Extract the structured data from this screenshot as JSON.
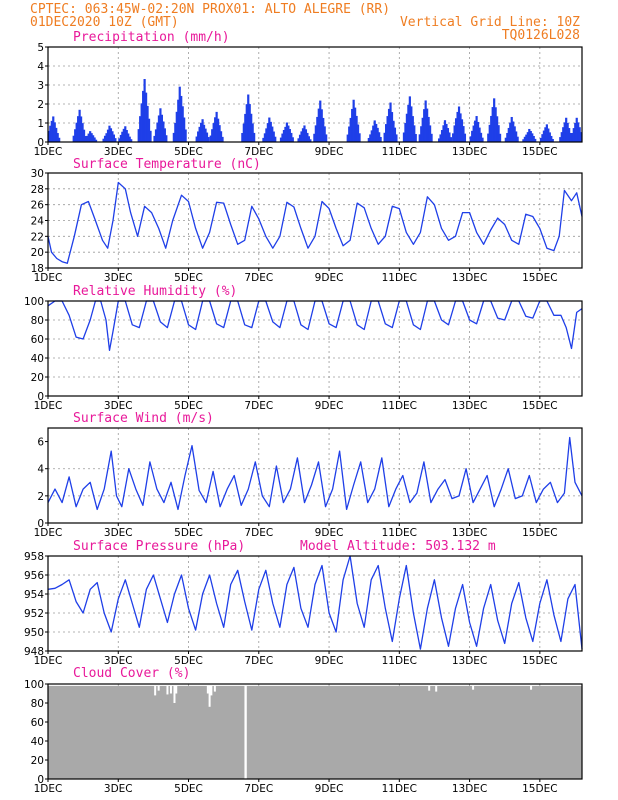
{
  "header": {
    "line1_left": "CPTEC:  063:45W-02:20N  PROX01: ALTO ALEGRE (RR)",
    "line2_left": "01DEC2020 10Z (GMT)",
    "line2_right": "Vertical Grid Line: 10Z",
    "line3_right": "TQ0126L028"
  },
  "colors": {
    "header": "#ef7d22",
    "panel_title": "#e8199a",
    "series": "#1f3fe8",
    "cloud": "#a9a9a9"
  },
  "x_axis": {
    "tick_labels": [
      "1DEC",
      "3DEC",
      "5DEC",
      "7DEC",
      "9DEC",
      "11DEC",
      "13DEC",
      "15DEC"
    ],
    "tick_days": [
      1,
      3,
      5,
      7,
      9,
      11,
      13,
      15
    ],
    "range_days": [
      1,
      16.2
    ]
  },
  "chart_data": [
    {
      "type": "bar",
      "title": "Precipitation (mm/h)",
      "ylim": [
        0,
        5
      ],
      "y_ticks": [
        "0",
        "1",
        "2",
        "3",
        "4",
        "5"
      ],
      "grid": true,
      "bursts": [
        {
          "day": 1.15,
          "peak": 1.5
        },
        {
          "day": 1.9,
          "peak": 1.7
        },
        {
          "day": 2.2,
          "peak": 0.6
        },
        {
          "day": 2.75,
          "peak": 1.1
        },
        {
          "day": 3.2,
          "peak": 1.0
        },
        {
          "day": 3.75,
          "peak": 3.4
        },
        {
          "day": 4.2,
          "peak": 1.8
        },
        {
          "day": 4.75,
          "peak": 3.4
        },
        {
          "day": 5.4,
          "peak": 1.6
        },
        {
          "day": 5.8,
          "peak": 1.7
        },
        {
          "day": 6.7,
          "peak": 2.5
        },
        {
          "day": 7.3,
          "peak": 1.4
        },
        {
          "day": 7.8,
          "peak": 1.4
        },
        {
          "day": 8.3,
          "peak": 1.0
        },
        {
          "day": 8.75,
          "peak": 2.2
        },
        {
          "day": 9.7,
          "peak": 2.3
        },
        {
          "day": 10.3,
          "peak": 1.4
        },
        {
          "day": 10.75,
          "peak": 2.6
        },
        {
          "day": 11.3,
          "peak": 2.5
        },
        {
          "day": 11.75,
          "peak": 2.2
        },
        {
          "day": 12.3,
          "peak": 1.3
        },
        {
          "day": 12.7,
          "peak": 2.6
        },
        {
          "day": 13.2,
          "peak": 1.5
        },
        {
          "day": 13.7,
          "peak": 2.3
        },
        {
          "day": 14.2,
          "peak": 1.4
        },
        {
          "day": 14.7,
          "peak": 0.9
        },
        {
          "day": 15.2,
          "peak": 1.1
        },
        {
          "day": 15.75,
          "peak": 1.3
        },
        {
          "day": 16.05,
          "peak": 1.3
        }
      ]
    },
    {
      "type": "line",
      "title": "Surface Temperature (nC)",
      "ylim": [
        18,
        30
      ],
      "y_ticks": [
        "18",
        "20",
        "22",
        "24",
        "26",
        "28",
        "30"
      ],
      "grid": true,
      "x": [
        1.0,
        1.1,
        1.25,
        1.4,
        1.55,
        1.75,
        1.95,
        2.15,
        2.35,
        2.55,
        2.7,
        2.85,
        3.0,
        3.2,
        3.35,
        3.55,
        3.75,
        3.95,
        4.15,
        4.35,
        4.55,
        4.8,
        5.0,
        5.2,
        5.4,
        5.6,
        5.8,
        6.0,
        6.2,
        6.4,
        6.6,
        6.8,
        7.0,
        7.2,
        7.4,
        7.6,
        7.8,
        8.0,
        8.2,
        8.4,
        8.6,
        8.8,
        9.0,
        9.2,
        9.4,
        9.6,
        9.8,
        10.0,
        10.2,
        10.4,
        10.6,
        10.8,
        11.0,
        11.2,
        11.4,
        11.6,
        11.8,
        12.0,
        12.2,
        12.4,
        12.6,
        12.8,
        13.0,
        13.2,
        13.4,
        13.6,
        13.8,
        14.0,
        14.2,
        14.4,
        14.6,
        14.8,
        15.0,
        15.2,
        15.4,
        15.55,
        15.7,
        15.9,
        16.05,
        16.2
      ],
      "y": [
        22,
        20,
        19.2,
        18.8,
        18.6,
        22,
        26,
        26.4,
        24,
        21.5,
        20.5,
        24,
        28.8,
        28,
        25,
        22,
        25.8,
        25,
        23,
        20.5,
        24,
        27.2,
        26.4,
        23,
        20.5,
        22.5,
        26.3,
        26.2,
        23.5,
        21,
        21.5,
        25.8,
        24.2,
        22,
        20.5,
        22,
        26.3,
        25.7,
        23,
        20.5,
        22,
        26.4,
        25.5,
        23,
        20.8,
        21.5,
        26.2,
        25.6,
        23,
        21,
        22,
        25.8,
        25.5,
        22.5,
        21,
        22.5,
        27,
        26,
        23,
        21.5,
        22,
        25,
        25,
        22.5,
        21,
        22.8,
        24.3,
        23.5,
        21.5,
        21,
        24.8,
        24.5,
        23,
        20.5,
        20.2,
        22,
        27.8,
        26.5,
        27.5,
        24.5
      ]
    },
    {
      "type": "line",
      "title": "Relative Humidity (%)",
      "ylim": [
        0,
        100
      ],
      "y_ticks": [
        "0",
        "20",
        "40",
        "60",
        "80",
        "100"
      ],
      "grid": true,
      "x": [
        1.0,
        1.2,
        1.4,
        1.6,
        1.8,
        2.0,
        2.2,
        2.35,
        2.5,
        2.65,
        2.75,
        2.85,
        3.0,
        3.2,
        3.4,
        3.6,
        3.8,
        4.0,
        4.2,
        4.4,
        4.6,
        4.8,
        5.0,
        5.2,
        5.4,
        5.6,
        5.8,
        6.0,
        6.2,
        6.4,
        6.6,
        6.8,
        7.0,
        7.2,
        7.4,
        7.6,
        7.8,
        8.0,
        8.2,
        8.4,
        8.6,
        8.8,
        9.0,
        9.2,
        9.4,
        9.6,
        9.8,
        10.0,
        10.2,
        10.4,
        10.6,
        10.8,
        11.0,
        11.2,
        11.4,
        11.6,
        11.8,
        12.0,
        12.2,
        12.4,
        12.6,
        12.8,
        13.0,
        13.2,
        13.4,
        13.6,
        13.8,
        14.0,
        14.2,
        14.4,
        14.6,
        14.8,
        15.0,
        15.2,
        15.4,
        15.6,
        15.75,
        15.9,
        16.05,
        16.2
      ],
      "y": [
        95,
        100,
        100,
        85,
        62,
        60,
        80,
        100,
        100,
        80,
        48,
        68,
        100,
        100,
        75,
        72,
        100,
        100,
        78,
        72,
        100,
        100,
        75,
        70,
        100,
        100,
        76,
        72,
        100,
        100,
        75,
        72,
        100,
        100,
        78,
        72,
        100,
        100,
        75,
        70,
        100,
        100,
        76,
        72,
        100,
        100,
        75,
        70,
        100,
        100,
        76,
        72,
        100,
        100,
        75,
        70,
        100,
        100,
        80,
        75,
        100,
        100,
        80,
        76,
        100,
        100,
        82,
        80,
        100,
        100,
        84,
        82,
        100,
        100,
        85,
        85,
        72,
        50,
        88,
        92
      ]
    },
    {
      "type": "line",
      "title": "Surface Wind (m/s)",
      "ylim": [
        0,
        7
      ],
      "y_ticks": [
        "0",
        "2",
        "4",
        "6"
      ],
      "grid": true,
      "x": [
        1.0,
        1.2,
        1.4,
        1.6,
        1.8,
        2.0,
        2.2,
        2.4,
        2.6,
        2.8,
        2.95,
        3.1,
        3.3,
        3.5,
        3.7,
        3.9,
        4.1,
        4.3,
        4.5,
        4.7,
        4.9,
        5.1,
        5.3,
        5.5,
        5.7,
        5.9,
        6.1,
        6.3,
        6.5,
        6.7,
        6.9,
        7.1,
        7.3,
        7.5,
        7.7,
        7.9,
        8.1,
        8.3,
        8.5,
        8.7,
        8.9,
        9.1,
        9.3,
        9.5,
        9.7,
        9.9,
        10.1,
        10.3,
        10.5,
        10.7,
        10.9,
        11.1,
        11.3,
        11.5,
        11.7,
        11.9,
        12.1,
        12.3,
        12.5,
        12.7,
        12.9,
        13.1,
        13.3,
        13.5,
        13.7,
        13.9,
        14.1,
        14.3,
        14.5,
        14.7,
        14.9,
        15.1,
        15.3,
        15.5,
        15.7,
        15.85,
        16.0,
        16.2
      ],
      "y": [
        1.5,
        2.5,
        1.5,
        3.4,
        1.2,
        2.5,
        3.0,
        1.0,
        2.5,
        5.3,
        2.0,
        1.2,
        4.0,
        2.5,
        1.3,
        4.5,
        2.5,
        1.5,
        3.0,
        1.0,
        3.5,
        5.7,
        2.4,
        1.5,
        3.8,
        1.2,
        2.5,
        3.5,
        1.3,
        2.5,
        4.5,
        2.0,
        1.2,
        4.2,
        1.5,
        2.5,
        4.8,
        1.5,
        2.8,
        4.5,
        1.2,
        2.5,
        5.3,
        1.0,
        2.8,
        4.5,
        1.5,
        2.5,
        4.8,
        1.2,
        2.5,
        3.5,
        1.5,
        2.2,
        4.5,
        1.5,
        2.5,
        3.2,
        1.8,
        2.0,
        4.0,
        1.5,
        2.5,
        3.5,
        1.2,
        2.5,
        4.0,
        1.8,
        2.0,
        3.5,
        1.5,
        2.5,
        3.0,
        1.5,
        2.2,
        6.3,
        3.0,
        2.0
      ]
    },
    {
      "type": "line",
      "title": "Surface Pressure (hPa)",
      "annotation": "Model Altitude: 503.132 m",
      "ylim": [
        948,
        958
      ],
      "y_ticks": [
        "948",
        "950",
        "952",
        "954",
        "956",
        "958"
      ],
      "grid": true,
      "x": [
        1.0,
        1.2,
        1.4,
        1.6,
        1.8,
        2.0,
        2.2,
        2.4,
        2.6,
        2.8,
        3.0,
        3.2,
        3.4,
        3.6,
        3.8,
        4.0,
        4.2,
        4.4,
        4.6,
        4.8,
        5.0,
        5.2,
        5.4,
        5.6,
        5.8,
        6.0,
        6.2,
        6.4,
        6.6,
        6.8,
        7.0,
        7.2,
        7.4,
        7.6,
        7.8,
        8.0,
        8.2,
        8.4,
        8.6,
        8.8,
        9.0,
        9.2,
        9.4,
        9.6,
        9.8,
        10.0,
        10.2,
        10.4,
        10.6,
        10.8,
        11.0,
        11.2,
        11.4,
        11.6,
        11.8,
        12.0,
        12.2,
        12.4,
        12.6,
        12.8,
        13.0,
        13.2,
        13.4,
        13.6,
        13.8,
        14.0,
        14.2,
        14.4,
        14.6,
        14.8,
        15.0,
        15.2,
        15.4,
        15.6,
        15.8,
        16.0,
        16.2
      ],
      "y": [
        954.5,
        954.6,
        955.0,
        955.5,
        953.2,
        952.0,
        954.5,
        955.2,
        952.0,
        950.0,
        953.5,
        955.5,
        953.0,
        950.5,
        954.5,
        956.0,
        953.5,
        951.0,
        954.0,
        956.0,
        952.5,
        950.2,
        954.0,
        956.0,
        953.0,
        950.5,
        955.0,
        956.5,
        953.2,
        950.2,
        954.5,
        956.5,
        953.0,
        950.5,
        955.0,
        956.8,
        952.5,
        950.5,
        955.0,
        957.0,
        952.0,
        950.0,
        955.5,
        958.0,
        953.0,
        950.5,
        955.5,
        957.0,
        952.5,
        949.0,
        953.5,
        957.0,
        952.0,
        948.2,
        952.5,
        955.5,
        951.5,
        948.5,
        952.5,
        955.0,
        951.0,
        948.5,
        952.5,
        955.0,
        951.2,
        948.8,
        953.0,
        955.2,
        951.5,
        949.0,
        953.0,
        955.5,
        951.8,
        949.0,
        953.5,
        955.0,
        948.2
      ]
    },
    {
      "type": "area",
      "title": "Cloud Cover (%)",
      "ylim": [
        0,
        100
      ],
      "y_ticks": [
        "0",
        "20",
        "40",
        "60",
        "80",
        "100"
      ],
      "grid": true,
      "baseline_percent": 98,
      "dips": [
        {
          "day": 4.05,
          "value": 88
        },
        {
          "day": 4.15,
          "value": 93
        },
        {
          "day": 4.4,
          "value": 89
        },
        {
          "day": 4.5,
          "value": 90
        },
        {
          "day": 4.6,
          "value": 80
        },
        {
          "day": 4.65,
          "value": 90
        },
        {
          "day": 5.55,
          "value": 90
        },
        {
          "day": 5.6,
          "value": 76
        },
        {
          "day": 5.65,
          "value": 88
        },
        {
          "day": 5.75,
          "value": 92
        },
        {
          "day": 6.62,
          "value": 0
        },
        {
          "day": 6.63,
          "value": 0
        },
        {
          "day": 11.85,
          "value": 93
        },
        {
          "day": 12.05,
          "value": 92
        },
        {
          "day": 13.1,
          "value": 94
        },
        {
          "day": 14.75,
          "value": 94
        }
      ]
    }
  ]
}
